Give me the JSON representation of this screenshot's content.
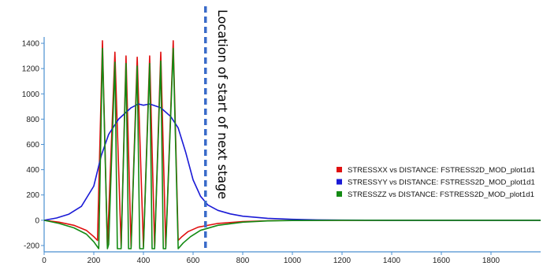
{
  "chart_data": {
    "type": "line",
    "title": "",
    "xlabel": "",
    "ylabel": "",
    "xlim": [
      0,
      2000
    ],
    "ylim": [
      -250,
      1450
    ],
    "x_ticks": [
      0,
      200,
      400,
      600,
      800,
      1000,
      1200,
      1400,
      1600,
      1800
    ],
    "y_ticks": [
      -200,
      0,
      200,
      400,
      600,
      800,
      1000,
      1200,
      1400
    ],
    "grid": false,
    "legend": "center-right",
    "series": [
      {
        "name": "STRESSXX vs DISTANCE: FSTRESS2D_MOD_plot1d1",
        "color": "#e01010",
        "points": [
          [
            0,
            0
          ],
          [
            60,
            -15
          ],
          [
            120,
            -40
          ],
          [
            170,
            -80
          ],
          [
            200,
            -130
          ],
          [
            215,
            -160
          ],
          [
            235,
            1420
          ],
          [
            255,
            -210
          ],
          [
            285,
            1330
          ],
          [
            310,
            -210
          ],
          [
            330,
            1300
          ],
          [
            350,
            -210
          ],
          [
            375,
            1290
          ],
          [
            400,
            -210
          ],
          [
            425,
            1300
          ],
          [
            445,
            -210
          ],
          [
            470,
            1330
          ],
          [
            490,
            -210
          ],
          [
            520,
            1420
          ],
          [
            540,
            -160
          ],
          [
            555,
            -130
          ],
          [
            580,
            -90
          ],
          [
            620,
            -55
          ],
          [
            700,
            -25
          ],
          [
            800,
            -10
          ],
          [
            900,
            -4
          ],
          [
            1000,
            -1
          ],
          [
            1200,
            0
          ],
          [
            2000,
            0
          ]
        ]
      },
      {
        "name": "STRESSYY vs DISTANCE: FSTRESS2D_MOD_plot1d1",
        "color": "#1a1ad6",
        "points": [
          [
            0,
            0
          ],
          [
            50,
            18
          ],
          [
            100,
            48
          ],
          [
            150,
            110
          ],
          [
            200,
            270
          ],
          [
            230,
            510
          ],
          [
            260,
            680
          ],
          [
            300,
            800
          ],
          [
            350,
            890
          ],
          [
            380,
            920
          ],
          [
            400,
            910
          ],
          [
            425,
            920
          ],
          [
            470,
            890
          ],
          [
            510,
            820
          ],
          [
            540,
            730
          ],
          [
            570,
            540
          ],
          [
            600,
            320
          ],
          [
            630,
            190
          ],
          [
            660,
            120
          ],
          [
            700,
            78
          ],
          [
            750,
            50
          ],
          [
            800,
            32
          ],
          [
            900,
            15
          ],
          [
            1000,
            7
          ],
          [
            1100,
            3
          ],
          [
            1200,
            1
          ],
          [
            1400,
            0
          ],
          [
            2000,
            0
          ]
        ]
      },
      {
        "name": "STRESSZZ vs DISTANCE: FSTRESS2D_MOD_plot1d1",
        "color": "#138a13",
        "points": [
          [
            0,
            0
          ],
          [
            60,
            -25
          ],
          [
            120,
            -60
          ],
          [
            170,
            -110
          ],
          [
            200,
            -170
          ],
          [
            220,
            -225
          ],
          [
            235,
            1360
          ],
          [
            255,
            -225
          ],
          [
            260,
            -190
          ],
          [
            285,
            1250
          ],
          [
            295,
            -225
          ],
          [
            310,
            -225
          ],
          [
            330,
            1240
          ],
          [
            340,
            -225
          ],
          [
            350,
            -225
          ],
          [
            375,
            1220
          ],
          [
            385,
            -225
          ],
          [
            400,
            -225
          ],
          [
            425,
            1240
          ],
          [
            435,
            -225
          ],
          [
            445,
            -225
          ],
          [
            470,
            1260
          ],
          [
            480,
            -225
          ],
          [
            490,
            -225
          ],
          [
            520,
            1360
          ],
          [
            540,
            -225
          ],
          [
            560,
            -180
          ],
          [
            590,
            -130
          ],
          [
            630,
            -80
          ],
          [
            700,
            -40
          ],
          [
            800,
            -15
          ],
          [
            900,
            -5
          ],
          [
            1000,
            -2
          ],
          [
            1200,
            0
          ],
          [
            2000,
            0
          ]
        ]
      }
    ],
    "annotations": [
      {
        "type": "vline",
        "x": 650,
        "color": "#3a6bc9",
        "style": "dashed",
        "label": "Location of start of next stage"
      }
    ]
  }
}
